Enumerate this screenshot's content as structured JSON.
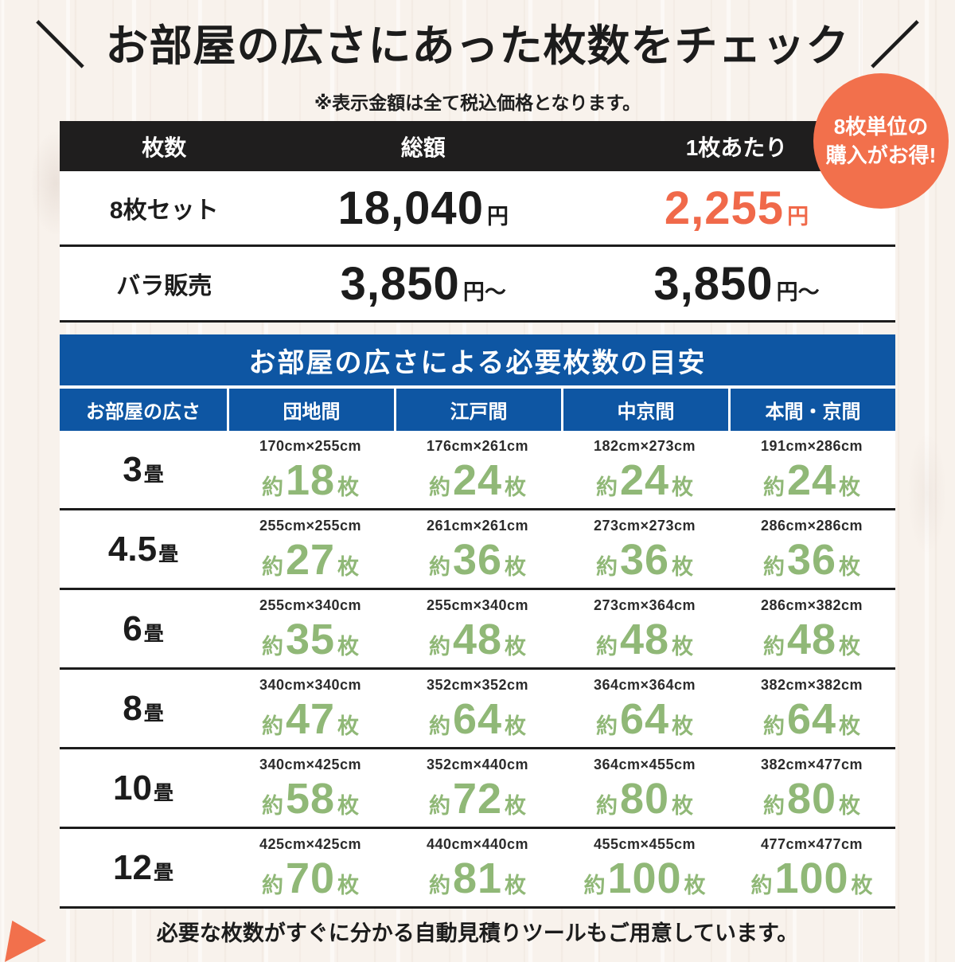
{
  "header": {
    "decoration_left": "＼",
    "title": "お部屋の広さにあった枚数をチェック",
    "decoration_right": "／",
    "tax_note": "※表示金額は全て税込価格となります。"
  },
  "badge": {
    "line1": "8枚単位の",
    "line2": "購入がお得!"
  },
  "price_table": {
    "col_qty": "枚数",
    "col_total": "総額",
    "col_per": "1枚あたり",
    "rows": [
      {
        "label": "8枚セット",
        "total": "18,040",
        "total_unit": "円",
        "per": "2,255",
        "per_unit": "円"
      },
      {
        "label": "バラ販売",
        "total": "3,850",
        "total_unit": "円〜",
        "per": "3,850",
        "per_unit": "円〜"
      }
    ]
  },
  "guide_table": {
    "title": "お部屋の広さによる必要枚数の目安",
    "col_headers": [
      "お部屋の広さ",
      "団地間",
      "江戸間",
      "中京間",
      "本間・京間"
    ],
    "approx_prefix": "約",
    "sheets_suffix": "枚",
    "rows": [
      {
        "size": "3",
        "size_unit": "畳",
        "cells": [
          {
            "dim": "170cm×255cm",
            "count": "18"
          },
          {
            "dim": "176cm×261cm",
            "count": "24"
          },
          {
            "dim": "182cm×273cm",
            "count": "24"
          },
          {
            "dim": "191cm×286cm",
            "count": "24"
          }
        ]
      },
      {
        "size": "4.5",
        "size_unit": "畳",
        "cells": [
          {
            "dim": "255cm×255cm",
            "count": "27"
          },
          {
            "dim": "261cm×261cm",
            "count": "36"
          },
          {
            "dim": "273cm×273cm",
            "count": "36"
          },
          {
            "dim": "286cm×286cm",
            "count": "36"
          }
        ]
      },
      {
        "size": "6",
        "size_unit": "畳",
        "cells": [
          {
            "dim": "255cm×340cm",
            "count": "35"
          },
          {
            "dim": "255cm×340cm",
            "count": "48"
          },
          {
            "dim": "273cm×364cm",
            "count": "48"
          },
          {
            "dim": "286cm×382cm",
            "count": "48"
          }
        ]
      },
      {
        "size": "8",
        "size_unit": "畳",
        "cells": [
          {
            "dim": "340cm×340cm",
            "count": "47"
          },
          {
            "dim": "352cm×352cm",
            "count": "64"
          },
          {
            "dim": "364cm×364cm",
            "count": "64"
          },
          {
            "dim": "382cm×382cm",
            "count": "64"
          }
        ]
      },
      {
        "size": "10",
        "size_unit": "畳",
        "cells": [
          {
            "dim": "340cm×425cm",
            "count": "58"
          },
          {
            "dim": "352cm×440cm",
            "count": "72"
          },
          {
            "dim": "364cm×455cm",
            "count": "80"
          },
          {
            "dim": "382cm×477cm",
            "count": "80"
          }
        ]
      },
      {
        "size": "12",
        "size_unit": "畳",
        "cells": [
          {
            "dim": "425cm×425cm",
            "count": "70"
          },
          {
            "dim": "440cm×440cm",
            "count": "81"
          },
          {
            "dim": "455cm×455cm",
            "count": "100"
          },
          {
            "dim": "477cm×477cm",
            "count": "100"
          }
        ]
      }
    ]
  },
  "footer": {
    "note": "必要な枚数がすぐに分かる自動見積りツールもご用意しています。"
  },
  "colors": {
    "accent_orange": "#f2704c",
    "price_orange": "#f0694a",
    "header_blue": "#0e56a3",
    "bar_black": "#1f1e1e",
    "count_green": "#90b877",
    "background_cream": "#f8f2ec"
  }
}
